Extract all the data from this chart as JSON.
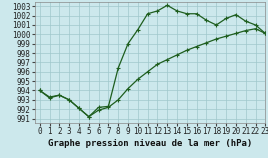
{
  "title": "Graphe pression niveau de la mer (hPa)",
  "background_color": "#cce8ec",
  "grid_color": "#a0c8cc",
  "line_color": "#1e5e1e",
  "ylim": [
    990.5,
    1003.5
  ],
  "xlim": [
    -0.5,
    23
  ],
  "yticks": [
    991,
    992,
    993,
    994,
    995,
    996,
    997,
    998,
    999,
    1000,
    1001,
    1002,
    1003
  ],
  "xticks": [
    0,
    1,
    2,
    3,
    4,
    5,
    6,
    7,
    8,
    9,
    10,
    11,
    12,
    13,
    14,
    15,
    16,
    17,
    18,
    19,
    20,
    21,
    22,
    23
  ],
  "series1_x": [
    0,
    1,
    2,
    3,
    4,
    5,
    6,
    7,
    8,
    9,
    10,
    11,
    12,
    13,
    14,
    15,
    16,
    17,
    18,
    19,
    20,
    21,
    22,
    23
  ],
  "series1_y": [
    994.0,
    993.2,
    993.5,
    993.0,
    992.1,
    991.2,
    992.2,
    992.3,
    996.4,
    999.0,
    1000.5,
    1002.2,
    1002.5,
    1003.1,
    1002.5,
    1002.2,
    1002.2,
    1001.5,
    1001.0,
    1001.7,
    1002.1,
    1001.4,
    1001.0,
    1000.1
  ],
  "series2_x": [
    0,
    1,
    2,
    3,
    4,
    5,
    6,
    7,
    8,
    9,
    10,
    11,
    12,
    13,
    14,
    15,
    16,
    17,
    18,
    19,
    20,
    21,
    22,
    23
  ],
  "series2_y": [
    994.0,
    993.3,
    993.5,
    993.0,
    992.1,
    991.2,
    991.9,
    992.2,
    993.0,
    994.2,
    995.2,
    996.0,
    996.8,
    997.3,
    997.8,
    998.3,
    998.7,
    999.1,
    999.5,
    999.8,
    1000.1,
    1000.4,
    1000.6,
    1000.1
  ],
  "tick_fontsize": 5.5,
  "xlabel_fontsize": 6.5
}
